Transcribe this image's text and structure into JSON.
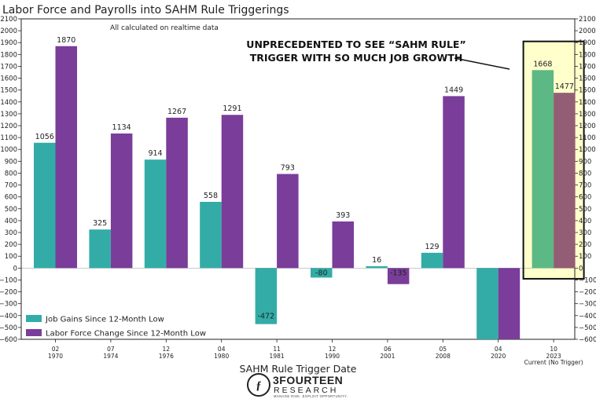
{
  "chart_data": {
    "type": "bar",
    "title": "Labor Force and Payrolls into SAHM Rule Triggerings",
    "subtitle": "All calculated on realtime data",
    "xlabel": "SAHM Rule Trigger Date",
    "ylabel": "",
    "ylim": [
      -600,
      2100
    ],
    "ytick_step": 100,
    "categories": [
      {
        "top": "02",
        "bottom": "1970",
        "extra": ""
      },
      {
        "top": "07",
        "bottom": "1974",
        "extra": ""
      },
      {
        "top": "12",
        "bottom": "1976",
        "extra": ""
      },
      {
        "top": "04",
        "bottom": "1980",
        "extra": ""
      },
      {
        "top": "11",
        "bottom": "1981",
        "extra": ""
      },
      {
        "top": "12",
        "bottom": "1990",
        "extra": ""
      },
      {
        "top": "06",
        "bottom": "2001",
        "extra": ""
      },
      {
        "top": "05",
        "bottom": "2008",
        "extra": ""
      },
      {
        "top": "04",
        "bottom": "2020",
        "extra": ""
      },
      {
        "top": "10",
        "bottom": "2023",
        "extra": "Current (No Trigger)"
      }
    ],
    "series": [
      {
        "name": "Job Gains Since 12-Month Low",
        "color": "#33aca7",
        "highlight_color": "#5cb884",
        "values": [
          1056,
          325,
          914,
          558,
          -472,
          -80,
          16,
          129,
          -600,
          1668
        ],
        "labels": [
          "1056",
          "325",
          "914",
          "558",
          "-472",
          "-80",
          "16",
          "129",
          "",
          "1668"
        ]
      },
      {
        "name": "Labor Force Change Since 12-Month Low",
        "color": "#7a3d9a",
        "highlight_color": "#935d76",
        "values": [
          1870,
          1134,
          1267,
          1291,
          793,
          393,
          -135,
          1449,
          -600,
          1477
        ],
        "labels": [
          "1870",
          "1134",
          "1267",
          "1291",
          "793",
          "393",
          "-135",
          "1449",
          "",
          "1477"
        ]
      }
    ],
    "highlight_index": 9,
    "highlight_fill": "#ffffcc",
    "legend_position": "lower-left",
    "annotation": {
      "lines": [
        "UNPRECEDENTED TO SEE “SAHM RULE”",
        "TRIGGER WITH SO MUCH JOB GROWTH"
      ]
    },
    "grid": false
  },
  "brand": {
    "name": "3FOURTEEN",
    "sub": "RESEARCH",
    "tagline": "MANAGE RISK. EXPLOIT OPPORTUNITY."
  }
}
